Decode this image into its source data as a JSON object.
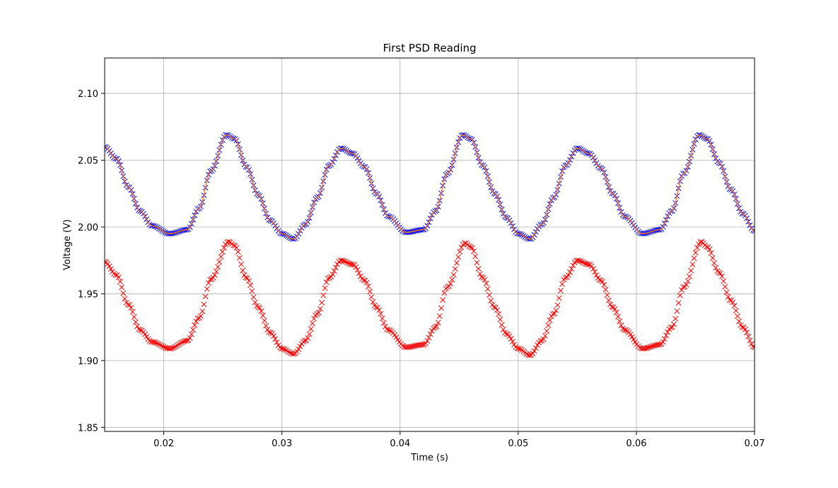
{
  "chart_data": {
    "type": "scatter",
    "title": "First PSD Reading",
    "xlabel": "Time (s)",
    "ylabel": "Voltage (V)",
    "xlim": [
      0.015,
      0.07
    ],
    "ylim": [
      1.847,
      2.1265
    ],
    "xticks": [
      0.02,
      0.03,
      0.04,
      0.05,
      0.06,
      0.07
    ],
    "xtick_labels": [
      "0.02",
      "0.03",
      "0.04",
      "0.05",
      "0.06",
      "0.07"
    ],
    "yticks": [
      1.85,
      1.9,
      1.95,
      2.0,
      2.05,
      2.1
    ],
    "ytick_labels": [
      "1.85",
      "1.90",
      "1.95",
      "2.00",
      "2.05",
      "2.10"
    ],
    "grid": true,
    "legend": "none",
    "series": [
      {
        "marker": "x",
        "color": "#0000ff",
        "x": [
          0.015,
          0.016,
          0.017,
          0.018,
          0.019,
          0.0205,
          0.022,
          0.023,
          0.024,
          0.0253,
          0.026,
          0.027,
          0.028,
          0.029,
          0.03,
          0.031,
          0.032,
          0.033,
          0.034,
          0.035,
          0.036,
          0.037,
          0.038,
          0.039,
          0.0405,
          0.042,
          0.043,
          0.044,
          0.0453,
          0.046,
          0.047,
          0.048,
          0.049,
          0.05,
          0.051,
          0.052,
          0.053,
          0.054,
          0.055,
          0.056,
          0.057,
          0.058,
          0.059,
          0.0605,
          0.062,
          0.063,
          0.064,
          0.0653,
          0.066,
          0.067,
          0.068,
          0.069,
          0.07
        ],
        "y": [
          2.06,
          2.051,
          2.03,
          2.012,
          2.001,
          1.995,
          1.998,
          2.014,
          2.042,
          2.069,
          2.066,
          2.045,
          2.024,
          2.005,
          1.995,
          1.991,
          2.002,
          2.022,
          2.046,
          2.059,
          2.055,
          2.045,
          2.025,
          2.008,
          1.996,
          1.998,
          2.012,
          2.04,
          2.069,
          2.066,
          2.046,
          2.025,
          2.007,
          1.995,
          1.991,
          2.002,
          2.022,
          2.046,
          2.059,
          2.055,
          2.044,
          2.025,
          2.008,
          1.995,
          1.998,
          2.012,
          2.04,
          2.069,
          2.066,
          2.048,
          2.028,
          2.01,
          1.997
        ]
      },
      {
        "marker": "line",
        "color": "#ff7f0e",
        "x": [
          0.015,
          0.016,
          0.017,
          0.018,
          0.019,
          0.0205,
          0.022,
          0.023,
          0.024,
          0.0253,
          0.026,
          0.027,
          0.028,
          0.029,
          0.03,
          0.031,
          0.032,
          0.033,
          0.034,
          0.035,
          0.036,
          0.037,
          0.038,
          0.039,
          0.0405,
          0.042,
          0.043,
          0.044,
          0.0453,
          0.046,
          0.047,
          0.048,
          0.049,
          0.05,
          0.051,
          0.052,
          0.053,
          0.054,
          0.055,
          0.056,
          0.057,
          0.058,
          0.059,
          0.0605,
          0.062,
          0.063,
          0.064,
          0.0653,
          0.066,
          0.067,
          0.068,
          0.069,
          0.07
        ],
        "y": [
          2.06,
          2.051,
          2.03,
          2.012,
          2.001,
          1.995,
          1.998,
          2.014,
          2.042,
          2.069,
          2.066,
          2.045,
          2.024,
          2.005,
          1.995,
          1.991,
          2.002,
          2.022,
          2.046,
          2.059,
          2.055,
          2.045,
          2.025,
          2.008,
          1.996,
          1.998,
          2.012,
          2.04,
          2.069,
          2.066,
          2.046,
          2.025,
          2.007,
          1.995,
          1.991,
          2.002,
          2.022,
          2.046,
          2.059,
          2.055,
          2.044,
          2.025,
          2.008,
          1.995,
          1.998,
          2.012,
          2.04,
          2.069,
          2.066,
          2.048,
          2.028,
          2.01,
          1.997
        ]
      },
      {
        "marker": "x",
        "color": "#ff0000",
        "x": [
          0.015,
          0.016,
          0.017,
          0.018,
          0.019,
          0.0205,
          0.022,
          0.023,
          0.024,
          0.0255,
          0.026,
          0.027,
          0.028,
          0.029,
          0.03,
          0.031,
          0.032,
          0.033,
          0.034,
          0.035,
          0.036,
          0.037,
          0.038,
          0.039,
          0.0405,
          0.042,
          0.043,
          0.044,
          0.0455,
          0.046,
          0.047,
          0.048,
          0.049,
          0.05,
          0.051,
          0.052,
          0.053,
          0.054,
          0.055,
          0.056,
          0.057,
          0.058,
          0.059,
          0.0605,
          0.062,
          0.063,
          0.064,
          0.0655,
          0.066,
          0.067,
          0.068,
          0.069,
          0.07
        ],
        "y": [
          1.974,
          1.964,
          1.942,
          1.923,
          1.914,
          1.909,
          1.915,
          1.932,
          1.961,
          1.989,
          1.986,
          1.962,
          1.94,
          1.921,
          1.909,
          1.905,
          1.915,
          1.935,
          1.962,
          1.975,
          1.972,
          1.96,
          1.94,
          1.923,
          1.91,
          1.912,
          1.925,
          1.955,
          1.988,
          1.985,
          1.962,
          1.94,
          1.92,
          1.909,
          1.904,
          1.915,
          1.935,
          1.962,
          1.975,
          1.972,
          1.96,
          1.94,
          1.923,
          1.909,
          1.912,
          1.925,
          1.955,
          1.989,
          1.985,
          1.966,
          1.945,
          1.925,
          1.91
        ]
      }
    ]
  }
}
